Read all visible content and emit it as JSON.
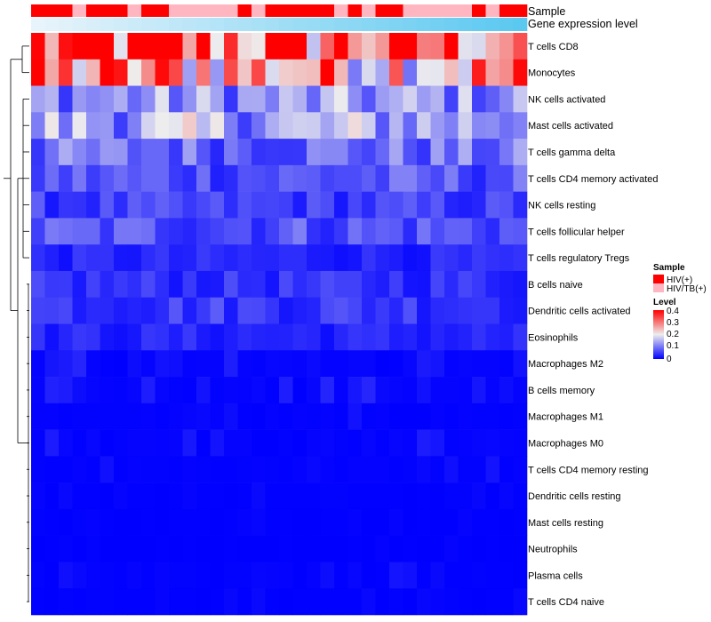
{
  "chart_data": {
    "type": "heatmap",
    "title": "",
    "n_samples": 36,
    "rows": [
      "T cells CD8",
      "Monocytes",
      "NK cells activated",
      "Mast cells activated",
      "T cells gamma delta",
      "T cells CD4 memory activated",
      "NK cells resting",
      "T cells follicular helper",
      "T cells regulatory  Tregs",
      "B cells naive",
      "Dendritic cells activated",
      "Eosinophils",
      "Macrophages M2",
      "B cells memory",
      "Macrophages M1",
      "Macrophages M0",
      "T cells CD4 memory resting",
      "Dendritic cells resting",
      "Mast cells resting",
      "Neutrophils",
      "Plasma cells",
      "T cells CD4 naive"
    ],
    "row_base_levels": [
      0.33,
      0.27,
      0.12,
      0.14,
      0.09,
      0.07,
      0.05,
      0.07,
      0.03,
      0.04,
      0.05,
      0.03,
      0.02,
      0.02,
      0.01,
      0.02,
      0.01,
      0.005,
      0.003,
      0.002,
      0.01,
      0.005
    ],
    "color_scale": {
      "low": "#0000FF",
      "mid": "#EEEEEE",
      "high": "#FF0000",
      "min": 0,
      "mid_value": 0.2,
      "max": 0.4
    },
    "annotations": {
      "sample_track_label": "Sample",
      "gene_track_label": "Gene expression level",
      "sample_groups": [
        1,
        1,
        1,
        0,
        1,
        1,
        1,
        0,
        1,
        1,
        0,
        0,
        0,
        0,
        0,
        1,
        0,
        1,
        1,
        1,
        1,
        1,
        0,
        1,
        0,
        1,
        1,
        0,
        0,
        0,
        0,
        0,
        1,
        0,
        1,
        1
      ],
      "gene_track_colors": [
        "#E8F4FB",
        "#5BC8F0"
      ]
    },
    "legend": {
      "sample": {
        "title": "Sample",
        "items": [
          {
            "label": "HIV(+)",
            "color": "#FF0000"
          },
          {
            "label": "HIV/TB(+)",
            "color": "#FFB6C1"
          }
        ]
      },
      "level": {
        "title": "Level",
        "ticks": [
          "0.4",
          "0.3",
          "0.2",
          "0.1",
          "0"
        ]
      }
    }
  }
}
